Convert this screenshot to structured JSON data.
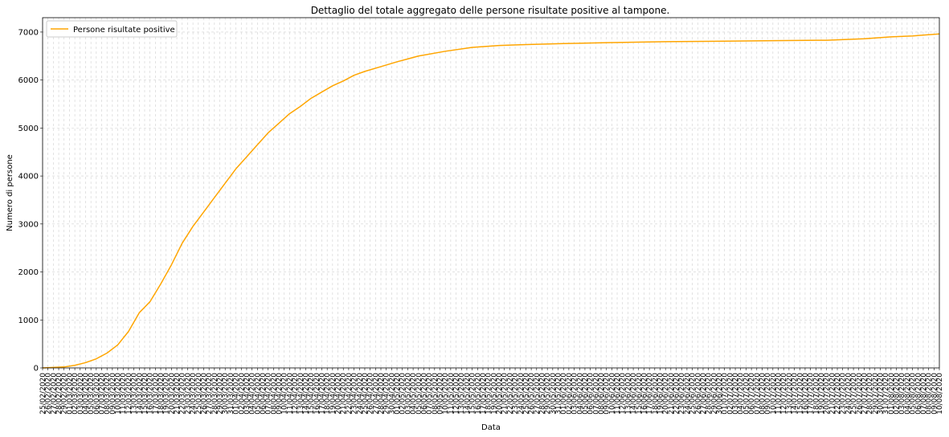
{
  "chart_data": {
    "type": "line",
    "title": "Dettaglio del totale aggregato delle persone risultate positive al tampone.",
    "xlabel": "Data",
    "ylabel": "Numero di persone",
    "ylim": [
      0,
      7300
    ],
    "yticks": [
      0,
      1000,
      2000,
      3000,
      4000,
      5000,
      6000,
      7000
    ],
    "start_date": "2020-02-25",
    "end_date": "2020-08-10",
    "grid": true,
    "legend_position": "upper-left",
    "series": [
      {
        "name": "Persone risultate positive",
        "color": "#ffa500",
        "x": [
          "2020-02-25",
          "2020-02-29",
          "2020-03-02",
          "2020-03-04",
          "2020-03-06",
          "2020-03-08",
          "2020-03-10",
          "2020-03-12",
          "2020-03-14",
          "2020-03-16",
          "2020-03-18",
          "2020-03-20",
          "2020-03-22",
          "2020-03-24",
          "2020-03-26",
          "2020-03-28",
          "2020-03-30",
          "2020-04-01",
          "2020-04-03",
          "2020-04-05",
          "2020-04-07",
          "2020-04-09",
          "2020-04-11",
          "2020-04-13",
          "2020-04-15",
          "2020-04-17",
          "2020-04-19",
          "2020-04-21",
          "2020-04-23",
          "2020-04-25",
          "2020-04-28",
          "2020-05-01",
          "2020-05-05",
          "2020-05-10",
          "2020-05-15",
          "2020-05-20",
          "2020-05-25",
          "2020-06-01",
          "2020-06-10",
          "2020-06-20",
          "2020-07-01",
          "2020-07-10",
          "2020-07-20",
          "2020-07-27",
          "2020-08-01",
          "2020-08-05",
          "2020-08-10"
        ],
        "y": [
          0,
          20,
          55,
          110,
          190,
          310,
          480,
          760,
          1150,
          1380,
          1750,
          2150,
          2600,
          2950,
          3250,
          3550,
          3850,
          4150,
          4400,
          4650,
          4900,
          5100,
          5300,
          5450,
          5620,
          5750,
          5880,
          5980,
          6100,
          6180,
          6280,
          6380,
          6500,
          6600,
          6680,
          6720,
          6740,
          6760,
          6780,
          6800,
          6810,
          6820,
          6830,
          6860,
          6900,
          6920,
          6960
        ]
      }
    ]
  }
}
